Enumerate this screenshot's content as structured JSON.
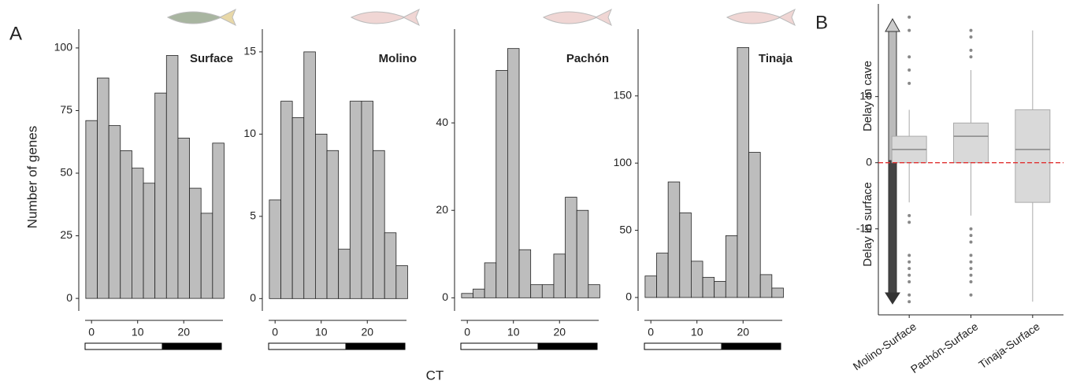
{
  "panel_labels": [
    "A",
    "B"
  ],
  "shared_ylabel": "Number of genes",
  "shared_xlabel": "CT",
  "chart_data": [
    {
      "type": "histogram",
      "title": "Surface",
      "bins": [
        -1.25,
        1.25,
        3.75,
        6.25,
        8.75,
        11.25,
        13.75,
        16.25,
        18.75,
        21.25,
        23.75,
        26.25,
        28.75
      ],
      "values": [
        71,
        88,
        69,
        59,
        52,
        46,
        82,
        97,
        64,
        44,
        34,
        62
      ],
      "color": "#bdbdbd",
      "xlim": [
        -1.4,
        28.5
      ],
      "xticks": [
        0,
        10,
        20
      ],
      "ylim": [
        -5,
        105
      ],
      "yticks": [
        0,
        25,
        50,
        75,
        100
      ]
    },
    {
      "type": "histogram",
      "title": "Molino",
      "bins": [
        -1.25,
        1.25,
        3.75,
        6.25,
        8.75,
        11.25,
        13.75,
        16.25,
        18.75,
        21.25,
        23.75,
        26.25,
        28.75
      ],
      "values": [
        6,
        12,
        11,
        15,
        10,
        9,
        3,
        12,
        12,
        9,
        4,
        2
      ],
      "color": "#bdbdbd",
      "xlim": [
        -1.4,
        28.5
      ],
      "xticks": [
        0,
        10,
        20
      ],
      "ylim": [
        -0.75,
        16
      ],
      "yticks": [
        0,
        5,
        10,
        15
      ]
    },
    {
      "type": "histogram",
      "title": "Pachón",
      "bins": [
        -1.25,
        1.25,
        3.75,
        6.25,
        8.75,
        11.25,
        13.75,
        16.25,
        18.75,
        21.25,
        23.75,
        26.25,
        28.75
      ],
      "values": [
        1,
        2,
        8,
        52,
        57,
        11,
        3,
        3,
        10,
        23,
        20,
        3
      ],
      "color": "#bdbdbd",
      "xlim": [
        -1.4,
        28.5
      ],
      "xticks": [
        0,
        10,
        20
      ],
      "ylim": [
        -3,
        60
      ],
      "yticks": [
        0,
        20,
        40
      ]
    },
    {
      "type": "histogram",
      "title": "Tinaja",
      "bins": [
        -1.25,
        1.25,
        3.75,
        6.25,
        8.75,
        11.25,
        13.75,
        16.25,
        18.75,
        21.25,
        23.75,
        26.25,
        28.75
      ],
      "values": [
        16,
        33,
        86,
        63,
        27,
        15,
        12,
        46,
        186,
        108,
        17,
        7
      ],
      "color": "#bdbdbd",
      "xlim": [
        -1.4,
        28.5
      ],
      "xticks": [
        0,
        10,
        20
      ],
      "ylim": [
        -10,
        195
      ],
      "yticks": [
        0,
        50,
        100,
        150
      ]
    },
    {
      "type": "box",
      "categories": [
        "Molino-Surface",
        "Pachón-Surface",
        "Tinaja-Surface"
      ],
      "q1": [
        0,
        0,
        -6
      ],
      "median": [
        2,
        4,
        2
      ],
      "q3": [
        4,
        6,
        8
      ],
      "whisker_low": [
        -6,
        -8,
        -21
      ],
      "whisker_high": [
        8,
        14,
        20
      ],
      "outliers": [
        [
          22,
          20,
          16,
          14,
          12,
          -8,
          -9,
          -14,
          -15,
          -16,
          -17,
          -18,
          -20,
          -21
        ],
        [
          20,
          19,
          17,
          16,
          -10,
          -11,
          -12,
          -14,
          -15,
          -16,
          -17,
          -18,
          -20
        ],
        []
      ],
      "color": "#d9d9d9",
      "ylim": [
        -23,
        24
      ],
      "yticks": [
        -10,
        0,
        10
      ],
      "reference_line": {
        "value": 0,
        "color": "#e03030"
      },
      "annotations": [
        "Delay in cave",
        "Delay in surface"
      ]
    }
  ]
}
